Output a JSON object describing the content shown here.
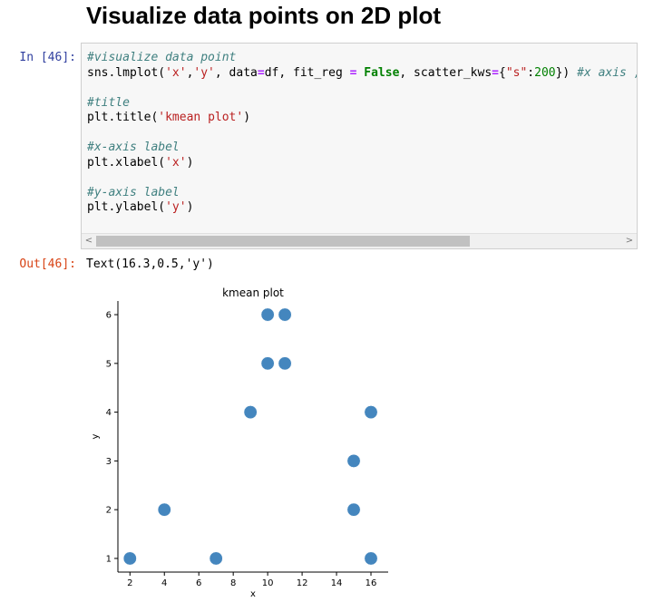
{
  "heading": "Visualize data points on 2D plot",
  "input_cell": {
    "prompt": "In [46]:",
    "lines": [
      [
        [
          "cm",
          "#visualize data point"
        ]
      ],
      [
        [
          "",
          "sns.lmplot("
        ],
        [
          "st",
          "'x'"
        ],
        [
          "",
          ","
        ],
        [
          "st",
          "'y'"
        ],
        [
          "",
          ", data"
        ],
        [
          "op",
          "="
        ],
        [
          "",
          "df, fit_reg "
        ],
        [
          "op",
          "="
        ],
        [
          "",
          " "
        ],
        [
          "kw",
          "False"
        ],
        [
          "",
          ", scatter_kws"
        ],
        [
          "op",
          "="
        ],
        [
          "",
          "{"
        ],
        [
          "st",
          "\"s\""
        ],
        [
          "",
          ":"
        ],
        [
          "nm",
          "200"
        ],
        [
          "",
          "}) "
        ],
        [
          "cm",
          "#x axis , ya"
        ]
      ],
      [
        [
          "",
          ""
        ]
      ],
      [
        [
          "cm",
          "#title"
        ]
      ],
      [
        [
          "",
          "plt.title("
        ],
        [
          "st",
          "'kmean plot'"
        ],
        [
          "",
          ")"
        ]
      ],
      [
        [
          "",
          ""
        ]
      ],
      [
        [
          "cm",
          "#x-axis label"
        ]
      ],
      [
        [
          "",
          "plt.xlabel("
        ],
        [
          "st",
          "'x'"
        ],
        [
          "",
          ")"
        ]
      ],
      [
        [
          "",
          ""
        ]
      ],
      [
        [
          "cm",
          "#y-axis label"
        ]
      ],
      [
        [
          "",
          "plt.ylabel("
        ],
        [
          "st",
          "'y'"
        ],
        [
          "",
          ")"
        ]
      ]
    ],
    "scroll_left_glyph": "<",
    "scroll_right_glyph": ">"
  },
  "output_cell": {
    "prompt": "Out[46]:",
    "text": "Text(16.3,0.5,'y')"
  },
  "chart_data": {
    "type": "scatter",
    "title": "kmean plot",
    "xlabel": "x",
    "ylabel": "y",
    "points": [
      {
        "x": 2,
        "y": 1
      },
      {
        "x": 4,
        "y": 2
      },
      {
        "x": 7,
        "y": 1
      },
      {
        "x": 9,
        "y": 4
      },
      {
        "x": 10,
        "y": 6
      },
      {
        "x": 10,
        "y": 5
      },
      {
        "x": 11,
        "y": 6
      },
      {
        "x": 11,
        "y": 5
      },
      {
        "x": 15,
        "y": 3
      },
      {
        "x": 15,
        "y": 2
      },
      {
        "x": 16,
        "y": 4
      },
      {
        "x": 16,
        "y": 1
      }
    ],
    "xticks": [
      2,
      4,
      6,
      8,
      10,
      12,
      14,
      16
    ],
    "yticks": [
      1,
      2,
      3,
      4,
      5,
      6
    ],
    "xlim": [
      1.3,
      17.0
    ],
    "ylim": [
      0.72,
      6.28
    ],
    "grid": false,
    "marker_color": "#3a7fba"
  }
}
